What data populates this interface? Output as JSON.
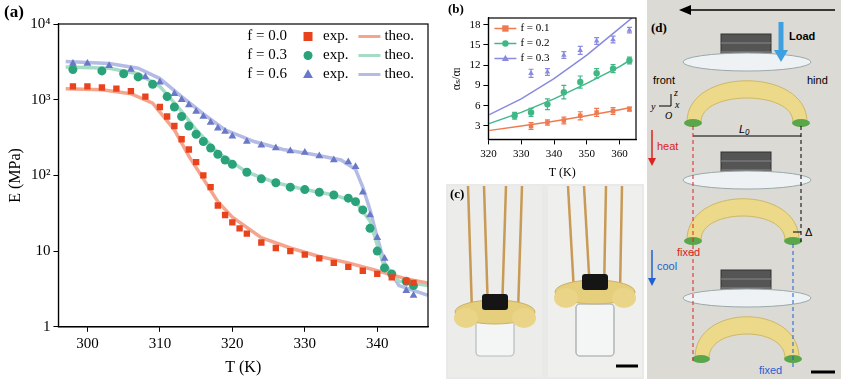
{
  "chart_data": [
    {
      "type": "scatter",
      "x_label": "T (K)",
      "y_label": "E (MPa)",
      "log": "y",
      "grid": false,
      "legend": "upper right",
      "xlim": [
        296,
        347
      ],
      "xticks": [
        300,
        310,
        320,
        330,
        340
      ],
      "ylim": [
        1,
        10000
      ],
      "yticks": [
        1,
        10,
        {
          "value": 100,
          "label": "10²"
        },
        {
          "value": 1000,
          "label": "10³"
        },
        {
          "value": 10000,
          "label": "10⁴"
        }
      ],
      "series": [
        {
          "name": "exp.",
          "group": "f = 0.0",
          "type": "scatter",
          "marker": "square",
          "color": "#e8431c",
          "x": [
            298,
            300,
            302,
            304,
            306,
            308,
            310,
            311,
            312,
            313,
            314,
            315,
            316,
            317,
            318,
            319,
            320,
            321,
            322,
            324,
            326,
            328,
            330,
            332,
            334,
            336,
            338,
            340,
            342,
            344,
            345
          ],
          "values": [
            1500,
            1500,
            1450,
            1400,
            1300,
            1100,
            800,
            600,
            450,
            300,
            220,
            150,
            100,
            70,
            40,
            30,
            24,
            20,
            17,
            13,
            11,
            10,
            9,
            8,
            7,
            6.2,
            5.5,
            5,
            4.5,
            4,
            3.8
          ]
        },
        {
          "name": "theo.",
          "group": "f = 0.0",
          "type": "line",
          "color": "#f5a58e",
          "x": [
            297,
            302,
            306,
            309,
            312,
            314,
            316,
            318,
            320,
            324,
            328,
            332,
            336,
            340,
            344,
            347
          ],
          "values": [
            1400,
            1350,
            1200,
            900,
            400,
            180,
            90,
            45,
            28,
            15,
            11,
            8.5,
            7,
            5.5,
            4.3,
            3.8
          ]
        },
        {
          "name": "exp.",
          "group": "f = 0.3",
          "type": "scatter",
          "marker": "circle",
          "color": "#2ba37a",
          "x": [
            298,
            302,
            305,
            307,
            309,
            311,
            312,
            313,
            314,
            315,
            316,
            317,
            318,
            319,
            320,
            322,
            324,
            326,
            328,
            330,
            332,
            334,
            336,
            337,
            338,
            339,
            340,
            341,
            342,
            344,
            345
          ],
          "values": [
            2500,
            2400,
            2200,
            2000,
            1600,
            1100,
            800,
            600,
            450,
            350,
            280,
            230,
            190,
            160,
            140,
            110,
            90,
            80,
            70,
            65,
            60,
            55,
            50,
            45,
            35,
            20,
            10,
            6,
            5,
            4,
            3.5
          ]
        },
        {
          "name": "theo.",
          "group": "f = 0.3",
          "type": "line",
          "color": "#a6dcc6",
          "x": [
            297,
            303,
            307,
            310,
            313,
            315,
            318,
            322,
            326,
            330,
            334,
            337,
            339,
            340,
            341,
            343,
            347
          ],
          "values": [
            2700,
            2600,
            2200,
            1500,
            700,
            400,
            200,
            110,
            80,
            65,
            55,
            45,
            25,
            12,
            6,
            4,
            3.5
          ]
        },
        {
          "name": "exp.",
          "group": "f = 0.6",
          "type": "scatter",
          "marker": "triangle",
          "color": "#6a78c8",
          "x": [
            298,
            300,
            303,
            306,
            308,
            310,
            312,
            313,
            314,
            315,
            316,
            317,
            318,
            319,
            320,
            322,
            324,
            326,
            328,
            330,
            332,
            334,
            336,
            337,
            338,
            339,
            340,
            341,
            342,
            344,
            345
          ],
          "values": [
            3000,
            3000,
            2800,
            2500,
            2000,
            1700,
            1200,
            1000,
            850,
            700,
            600,
            500,
            420,
            380,
            330,
            280,
            250,
            230,
            210,
            200,
            180,
            160,
            150,
            130,
            60,
            30,
            15,
            8,
            5,
            3,
            2.6
          ]
        },
        {
          "name": "theo.",
          "group": "f = 0.6",
          "type": "line",
          "color": "#b4bce6",
          "x": [
            297,
            303,
            307,
            310,
            313,
            316,
            319,
            323,
            327,
            331,
            335,
            337,
            338,
            339,
            340,
            341,
            343,
            347
          ],
          "values": [
            3200,
            3000,
            2600,
            1900,
            1100,
            650,
            400,
            280,
            220,
            190,
            160,
            120,
            70,
            35,
            15,
            7,
            3.5,
            2.6
          ]
        }
      ]
    },
    {
      "type": "scatter",
      "x_label": "T (K)",
      "y_label": "αₛ/αₗ",
      "grid": false,
      "legend": "upper left",
      "xlim": [
        320,
        365
      ],
      "xticks": [
        320,
        330,
        340,
        350,
        360
      ],
      "ylim": [
        1,
        19
      ],
      "yticks": [
        3,
        6,
        9,
        12,
        15,
        18
      ],
      "series": [
        {
          "name": "f = 0.1",
          "color": "#f07a50",
          "marker": "square",
          "x": [
            333,
            338,
            343,
            348,
            353,
            358,
            363
          ],
          "values": [
            3.0,
            3.5,
            3.8,
            4.5,
            5.0,
            5.2,
            5.5
          ],
          "errors": [
            0.5,
            0.4,
            0.5,
            0.6,
            0.6,
            0.5,
            0.3
          ],
          "fit": {
            "x": [
              320,
              330,
              340,
              350,
              360,
              363
            ],
            "values": [
              2.3,
              3.0,
              3.7,
              4.5,
              5.4,
              5.7
            ]
          }
        },
        {
          "name": "f = 0.2",
          "color": "#3fb886",
          "marker": "circle",
          "x": [
            328,
            333,
            338,
            343,
            348,
            353,
            358,
            363
          ],
          "values": [
            4.5,
            5.0,
            6.2,
            8.0,
            9.5,
            10.8,
            11.5,
            12.7
          ],
          "errors": [
            0.5,
            0.6,
            0.8,
            1.0,
            0.9,
            0.7,
            0.6,
            0.5
          ],
          "fit": {
            "x": [
              320,
              330,
              340,
              350,
              360,
              363
            ],
            "values": [
              3.3,
              5.0,
              7.0,
              9.3,
              11.8,
              12.7
            ]
          }
        },
        {
          "name": "f = 0.3",
          "color": "#8a8ae0",
          "marker": "triangle",
          "x": [
            333,
            338,
            343,
            348,
            353,
            358,
            363
          ],
          "values": [
            10.8,
            11.0,
            13.5,
            14.2,
            15.6,
            15.8,
            17.2
          ],
          "errors": [
            0.6,
            0.5,
            0.5,
            0.6,
            0.5,
            0.5,
            0.4
          ],
          "fit": {
            "x": [
              320,
              330,
              340,
              350,
              360,
              365
            ],
            "values": [
              4.6,
              7.0,
              10.0,
              13.5,
              17.5,
              19.5
            ]
          }
        }
      ]
    }
  ],
  "panel_labels": {
    "a": "(a)",
    "b": "(b)",
    "c": "(c)",
    "d": "(d)"
  },
  "photos": {
    "d": {
      "load": "Load",
      "front": "front",
      "hind": "hind",
      "heat": "heat",
      "cool": "cool",
      "fixed": [
        "fixed",
        "fixed"
      ],
      "length": "L₀",
      "shift": "Δ",
      "axes": [
        "y",
        "z",
        "x",
        "O"
      ]
    }
  }
}
